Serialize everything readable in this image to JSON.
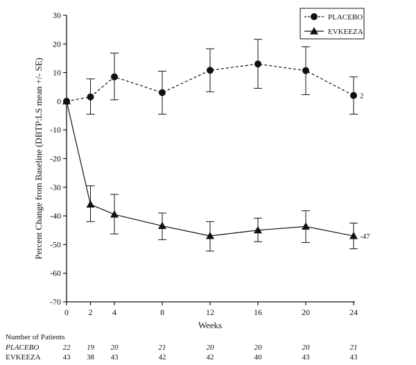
{
  "chart_data": {
    "type": "line",
    "title": "",
    "xlabel": "Weeks",
    "ylabel": "Percent Change from Baseline (DBTP:LS mean +/- SE)",
    "x": [
      0,
      2,
      4,
      8,
      12,
      16,
      20,
      24
    ],
    "x_tick_labels": [
      "0",
      "2",
      "4",
      "8",
      "12",
      "16",
      "20",
      "24"
    ],
    "ylim": [
      -70,
      30
    ],
    "y_ticks": [
      30,
      20,
      10,
      0,
      -10,
      -20,
      -30,
      -40,
      -50,
      -60,
      -70
    ],
    "y_tick_labels": [
      "30",
      "20",
      "10",
      "0",
      "-10",
      "-20",
      "-30",
      "-40",
      "-50",
      "-60",
      "-70"
    ],
    "grid": false,
    "legend_position": "top-right",
    "series": [
      {
        "name": "PLACEBO",
        "line_style": "dashed",
        "marker": "circle",
        "color": "#111111",
        "values": [
          0,
          1.5,
          8.5,
          3,
          10.8,
          13,
          10.7,
          2
        ],
        "error_low": [
          0,
          -4.5,
          0.5,
          -4.5,
          3.3,
          4.5,
          2.3,
          -4.5
        ],
        "error_high": [
          0,
          7.8,
          16.8,
          10.5,
          18.3,
          21.6,
          19,
          8.5
        ],
        "end_label": "2"
      },
      {
        "name": "EVKEEZA",
        "line_style": "solid",
        "marker": "triangle",
        "color": "#111111",
        "values": [
          0,
          -36,
          -39.5,
          -43.5,
          -47,
          -45,
          -43.7,
          -47
        ],
        "error_low": [
          0,
          -42,
          -46.3,
          -48.3,
          -52.3,
          -49,
          -49.3,
          -51.5
        ],
        "error_high": [
          0,
          -29.5,
          -32.5,
          -39,
          -42,
          -40.8,
          -38.2,
          -42.5
        ],
        "end_label": "-47"
      }
    ],
    "patients_table": {
      "title": "Number of Patients",
      "rows": [
        {
          "label": "PLACEBO",
          "italic": true,
          "values": [
            "22",
            "19",
            "20",
            "21",
            "20",
            "20",
            "20",
            "21"
          ]
        },
        {
          "label": "EVKEEZA",
          "italic": false,
          "values": [
            "43",
            "38",
            "43",
            "42",
            "42",
            "40",
            "43",
            "43"
          ]
        }
      ]
    }
  }
}
